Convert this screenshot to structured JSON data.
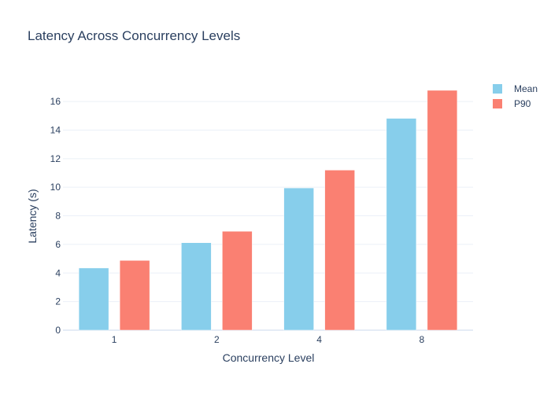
{
  "chart_data": {
    "type": "bar",
    "title": "Latency Across Concurrency Levels",
    "xlabel": "Concurrency Level",
    "ylabel": "Latency (s)",
    "categories": [
      "1",
      "2",
      "4",
      "8"
    ],
    "series": [
      {
        "name": "Mean",
        "values": [
          4.35,
          6.12,
          9.95,
          14.82
        ],
        "color": "#87CEEB"
      },
      {
        "name": "P90",
        "values": [
          4.88,
          6.92,
          11.2,
          16.78
        ],
        "color": "#FA8072"
      }
    ],
    "ylim": [
      0,
      17.6
    ],
    "yticks": [
      0,
      2,
      4,
      6,
      8,
      10,
      12,
      14,
      16
    ],
    "grid": true,
    "legend_position": "top-right"
  },
  "colors": {
    "text": "#2a3f5f",
    "grid": "#ebf0f8",
    "background": "#ffffff"
  }
}
